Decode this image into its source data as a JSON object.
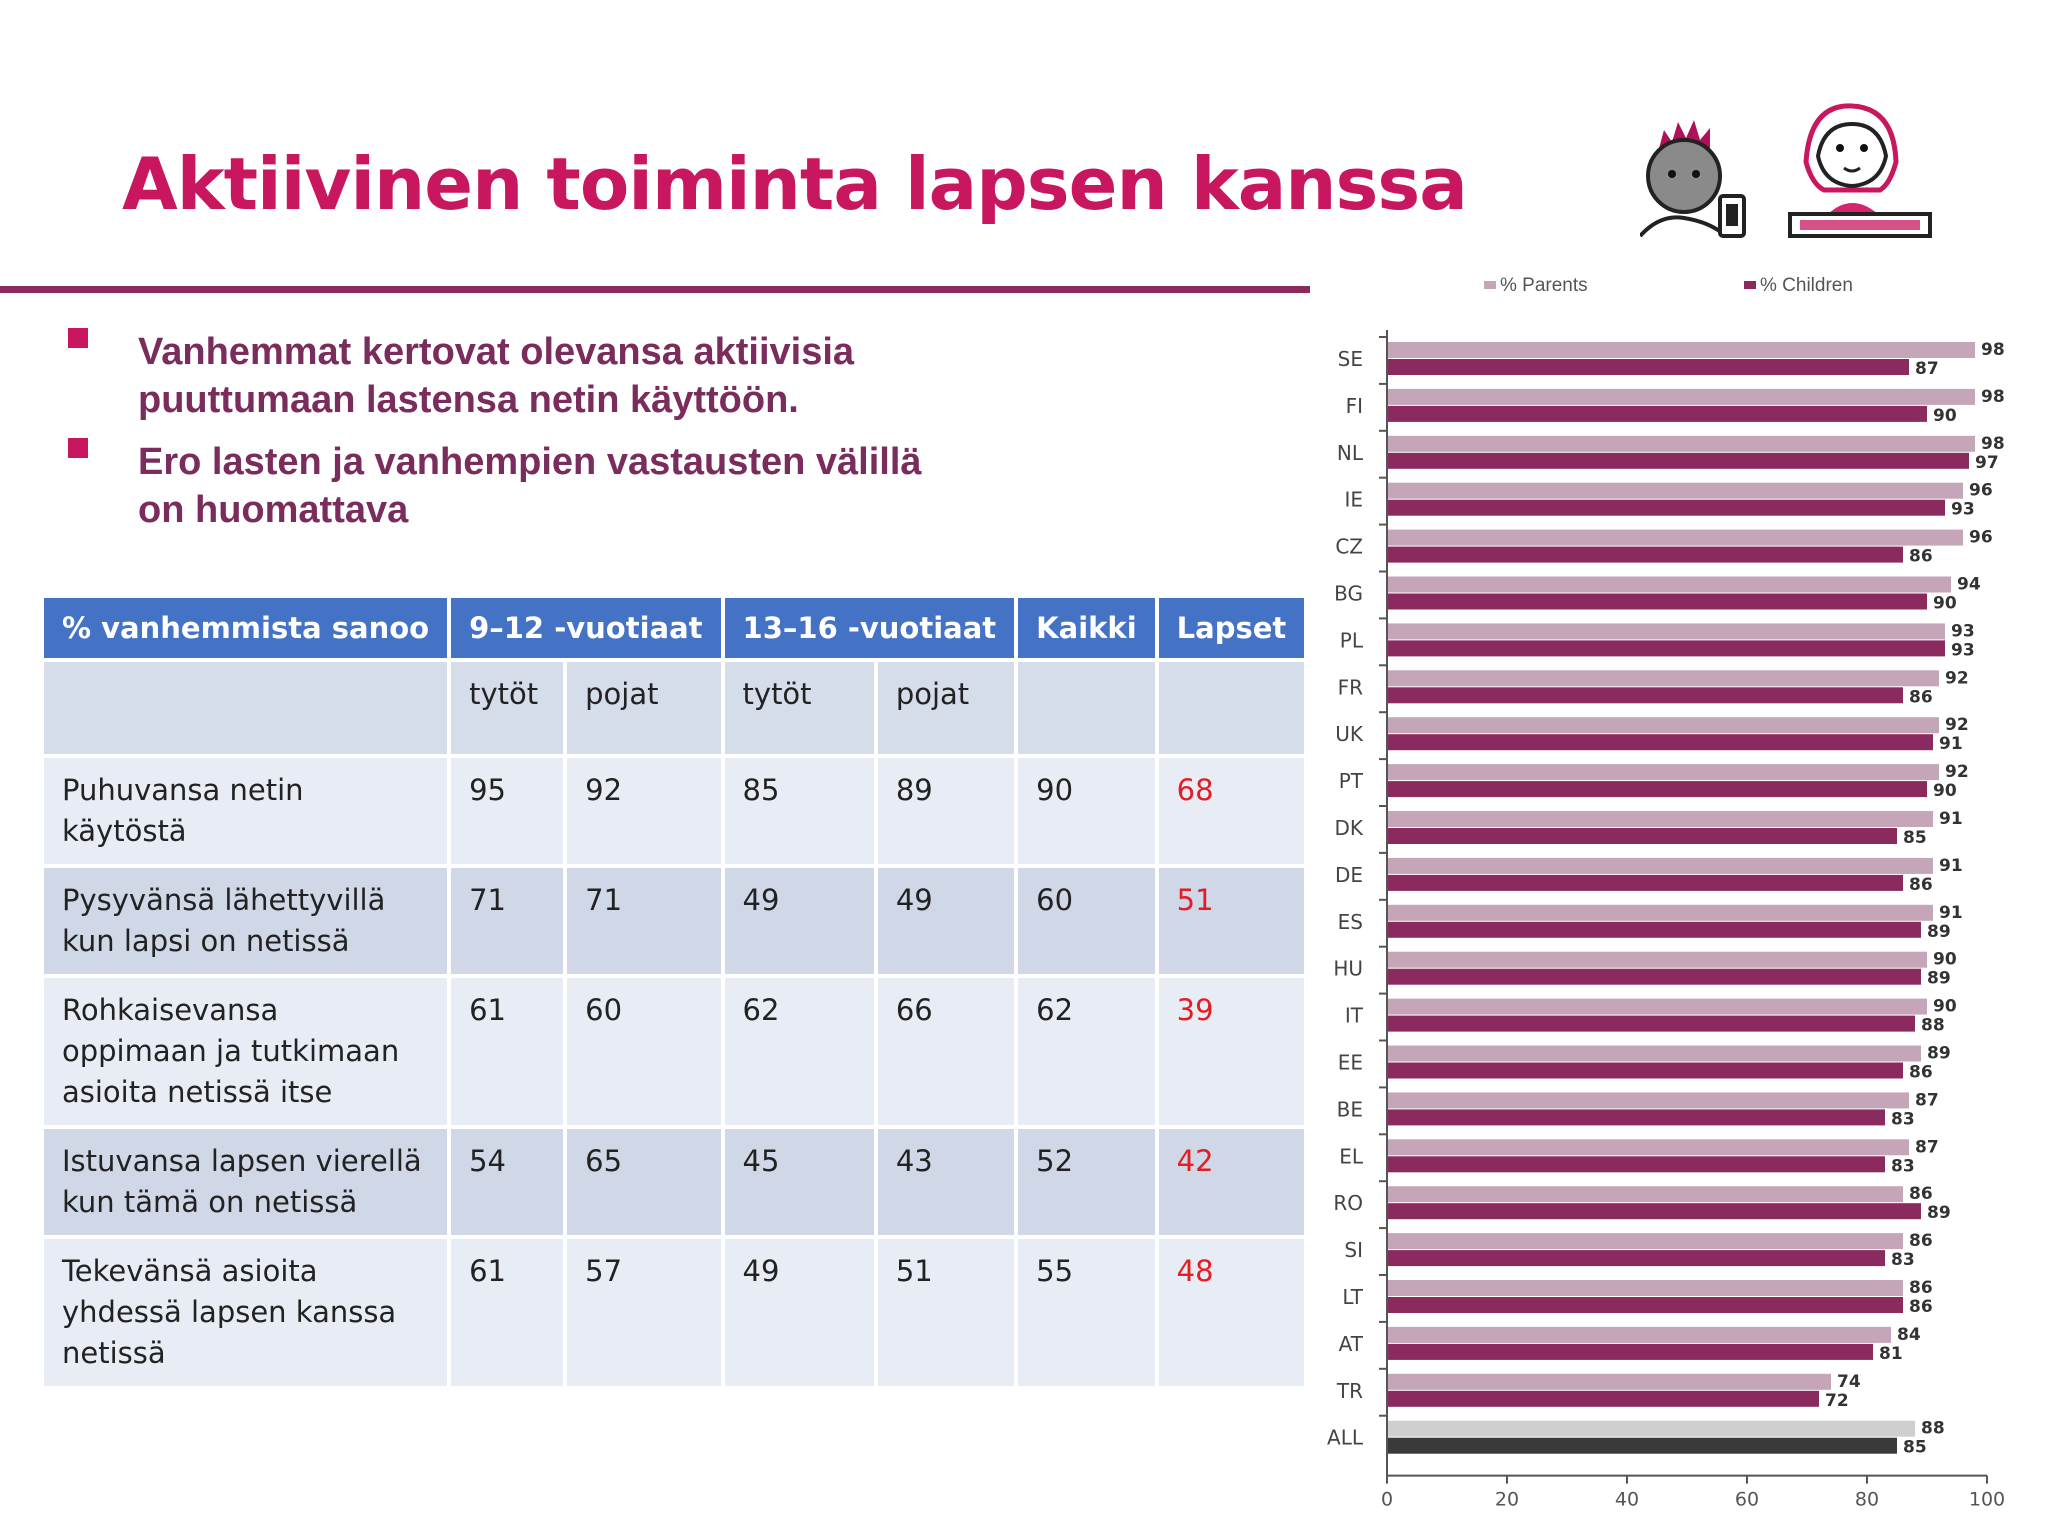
{
  "slide": {
    "title": "Aktiivinen toiminta lapsen kanssa",
    "bullets": [
      "Vanhemmat kertovat olevansa aktiivisia puuttumaan lastensa netin käyttöön.",
      "Ero lasten ja vanhempien vastausten välillä on huomattava"
    ]
  },
  "table": {
    "headers": [
      "% vanhemmista sanoo",
      "9–12 -vuotiaat",
      "13–16 -vuotiaat",
      "Kaikki",
      "Lapset"
    ],
    "subheaders": [
      "tytöt",
      "pojat",
      "tytöt",
      "pojat"
    ],
    "rows": [
      {
        "label": "Puhuvansa netin käytöstä",
        "cells": [
          "95",
          "92",
          "85",
          "89",
          "90"
        ],
        "kids": "68"
      },
      {
        "label": "Pysyvänsä lähettyvillä kun lapsi on netissä",
        "cells": [
          "71",
          "71",
          "49",
          "49",
          "60"
        ],
        "kids": "51"
      },
      {
        "label": "Rohkaisevansa oppimaan ja tutkimaan asioita netissä itse",
        "cells": [
          "61",
          "60",
          "62",
          "66",
          "62"
        ],
        "kids": "39"
      },
      {
        "label": "Istuvansa lapsen vierellä kun tämä on netissä",
        "cells": [
          "54",
          "65",
          "45",
          "43",
          "52"
        ],
        "kids": "42"
      },
      {
        "label": "Tekevänsä asioita yhdessä lapsen kanssa netissä",
        "cells": [
          "61",
          "57",
          "49",
          "51",
          "55"
        ],
        "kids": "48"
      }
    ]
  },
  "colors": {
    "title": "#c8175f",
    "parents_bar": "#c4a6b8",
    "children_bar": "#8b2a5e",
    "all_parents_bar": "#cfcfcf",
    "all_children_bar": "#3a3a3a",
    "table_header": "#4472c4",
    "kids_value": "#e21d24"
  },
  "icons": [
    "boy-with-phone-icon",
    "girl-with-laptop-icon"
  ],
  "chart_data": {
    "type": "bar",
    "orientation": "horizontal",
    "categories": [
      "SE",
      "FI",
      "NL",
      "IE",
      "CZ",
      "BG",
      "PL",
      "FR",
      "UK",
      "PT",
      "DK",
      "DE",
      "ES",
      "HU",
      "IT",
      "EE",
      "BE",
      "EL",
      "RO",
      "SI",
      "LT",
      "AT",
      "TR",
      "ALL"
    ],
    "series": [
      {
        "name": "% Parents",
        "values": [
          98,
          98,
          98,
          96,
          96,
          94,
          93,
          92,
          92,
          92,
          91,
          91,
          91,
          90,
          90,
          89,
          87,
          87,
          86,
          86,
          86,
          84,
          74,
          88
        ]
      },
      {
        "name": "% Children",
        "values": [
          87,
          90,
          97,
          93,
          86,
          90,
          93,
          86,
          91,
          90,
          85,
          86,
          89,
          89,
          88,
          86,
          83,
          83,
          89,
          83,
          86,
          81,
          72,
          85
        ]
      }
    ],
    "xlim": [
      0,
      100
    ],
    "xticks": [
      0,
      20,
      40,
      60,
      80,
      100
    ],
    "legend": "top",
    "grid": false
  }
}
